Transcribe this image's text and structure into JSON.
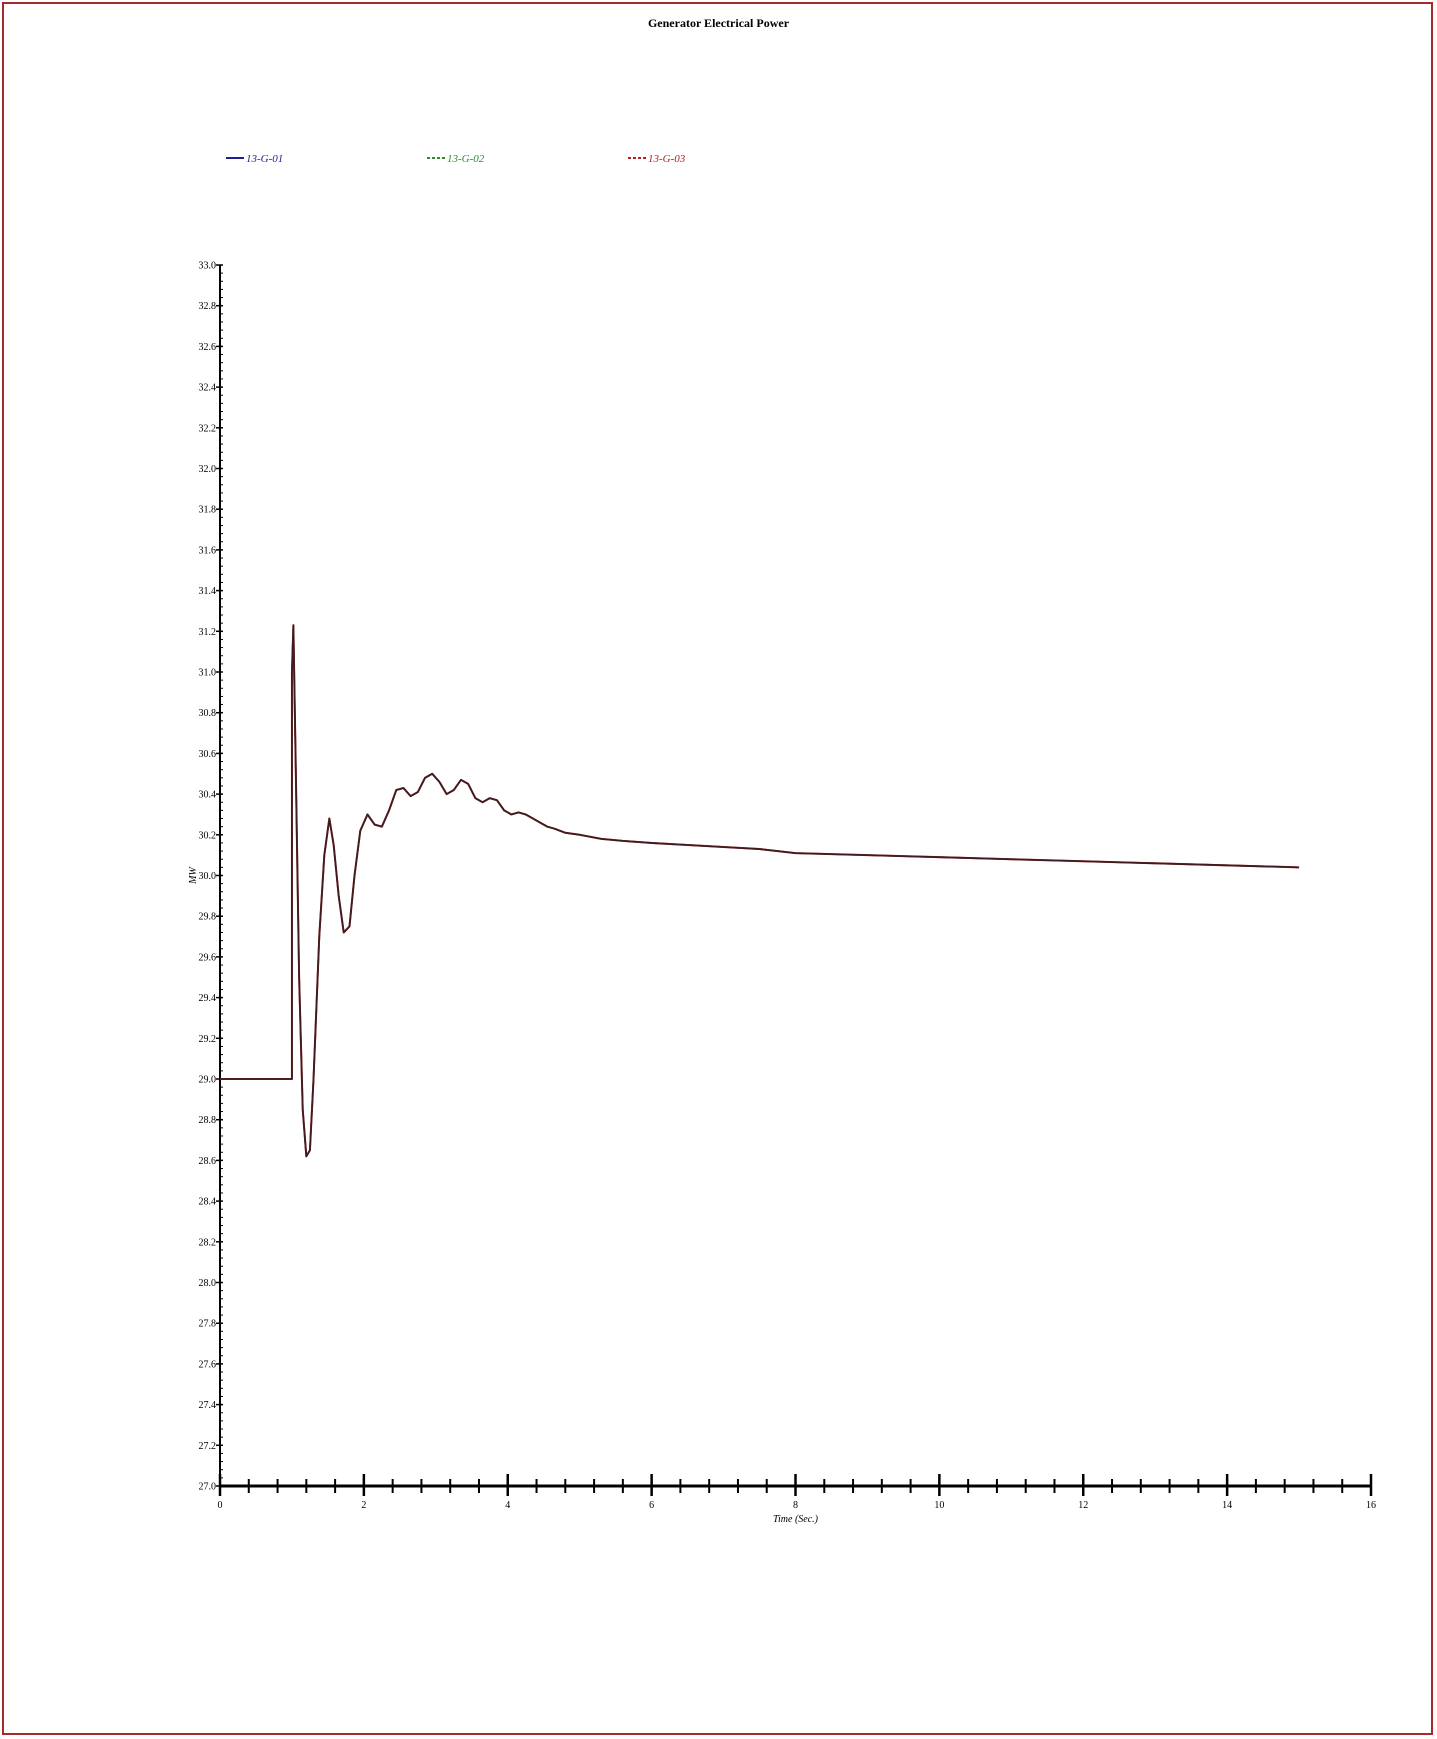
{
  "chart_data": {
    "type": "line",
    "title": "Generator Electrical Power",
    "xlabel": "Time (Sec.)",
    "ylabel": "MW",
    "xlim": [
      0,
      16
    ],
    "ylim": [
      27.0,
      33.0
    ],
    "x_ticks": [
      0,
      2,
      4,
      6,
      8,
      10,
      12,
      14,
      16
    ],
    "y_ticks": [
      27.0,
      27.2,
      27.4,
      27.6,
      27.8,
      28.0,
      28.2,
      28.4,
      28.6,
      28.8,
      29.0,
      29.2,
      29.4,
      29.6,
      29.8,
      30.0,
      30.2,
      30.4,
      30.6,
      30.8,
      31.0,
      31.2,
      31.4,
      31.6,
      31.8,
      32.0,
      32.2,
      32.4,
      32.6,
      32.8,
      33.0
    ],
    "grid": false,
    "legend_position": "top-left",
    "series": [
      {
        "name": "13-G-01",
        "color": "#1f1f8f",
        "dash": "solid"
      },
      {
        "name": "13-G-02",
        "color": "#2e8b2e",
        "dash": "dashed"
      },
      {
        "name": "13-G-03",
        "color": "#b22222",
        "dash": "dashed"
      }
    ],
    "curve": {
      "note_colors": "all three series overlap; drawn as one combined trace",
      "x": [
        0,
        1.0,
        1.0,
        1.02,
        1.05,
        1.1,
        1.15,
        1.2,
        1.25,
        1.3,
        1.38,
        1.45,
        1.52,
        1.58,
        1.65,
        1.72,
        1.8,
        1.87,
        1.95,
        2.05,
        2.15,
        2.25,
        2.35,
        2.45,
        2.55,
        2.65,
        2.75,
        2.85,
        2.95,
        3.05,
        3.15,
        3.25,
        3.35,
        3.45,
        3.55,
        3.65,
        3.75,
        3.85,
        3.95,
        4.05,
        4.15,
        4.25,
        4.35,
        4.45,
        4.55,
        4.65,
        4.8,
        5.0,
        5.3,
        5.6,
        6.0,
        6.5,
        7.0,
        7.5,
        8.0,
        9.0,
        10.0,
        11.0,
        12.0,
        13.0,
        14.0,
        15.0
      ],
      "y": [
        29.0,
        29.0,
        31.0,
        31.23,
        30.6,
        29.5,
        28.85,
        28.62,
        28.65,
        29.0,
        29.7,
        30.1,
        30.28,
        30.15,
        29.9,
        29.72,
        29.75,
        30.0,
        30.22,
        30.3,
        30.25,
        30.24,
        30.32,
        30.42,
        30.43,
        30.39,
        30.41,
        30.48,
        30.5,
        30.46,
        30.4,
        30.42,
        30.47,
        30.45,
        30.38,
        30.36,
        30.38,
        30.37,
        30.32,
        30.3,
        30.31,
        30.3,
        30.28,
        30.26,
        30.24,
        30.23,
        30.21,
        30.2,
        30.18,
        30.17,
        30.16,
        30.15,
        30.14,
        30.13,
        30.11,
        30.1,
        30.09,
        30.08,
        30.07,
        30.06,
        30.05,
        30.04
      ]
    }
  }
}
